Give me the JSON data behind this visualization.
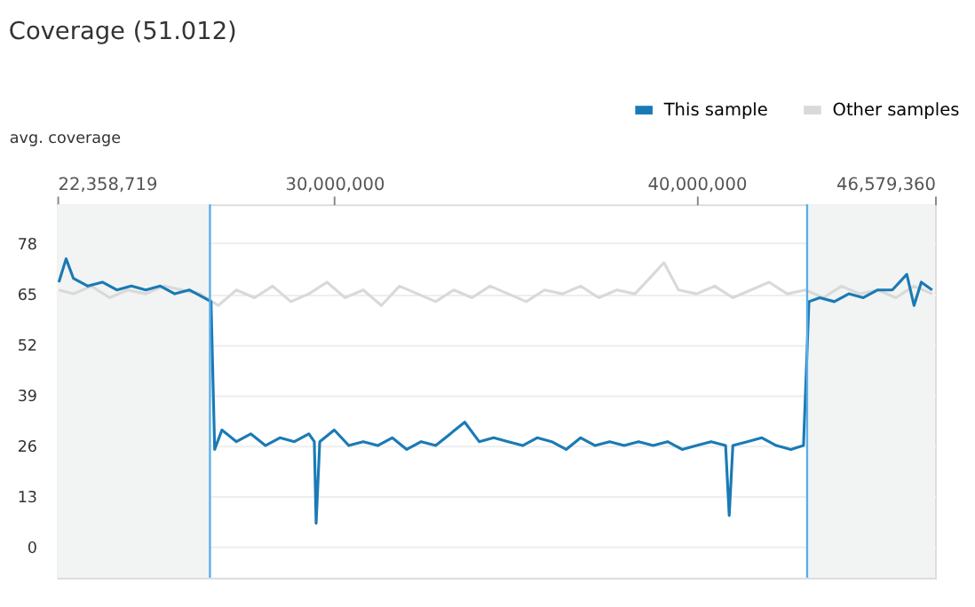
{
  "chart_data": {
    "type": "line",
    "title": "Coverage (51.012)",
    "ylabel": "avg. coverage",
    "xlim": [
      22358719,
      46579360
    ],
    "xticks": [
      {
        "value": 22358719,
        "label": "22,358,719"
      },
      {
        "value": 30000000,
        "label": "30,000,000"
      },
      {
        "value": 40000000,
        "label": "40,000,000"
      },
      {
        "value": 46579360,
        "label": "46,579,360"
      }
    ],
    "ylim": [
      -8,
      88
    ],
    "yticks": [
      0,
      13,
      26,
      39,
      52,
      65,
      78
    ],
    "grid": "y",
    "legend": "top right",
    "line_style": "solid",
    "marker": "none",
    "series": [
      {
        "name": "Other samples",
        "color": "#d9d9d9",
        "x": [
          22400000,
          22800000,
          23300000,
          23800000,
          24300000,
          24800000,
          25300000,
          25800000,
          26300000,
          26800000,
          27300000,
          27800000,
          28300000,
          28800000,
          29300000,
          29800000,
          30300000,
          30800000,
          31300000,
          31800000,
          32300000,
          32800000,
          33300000,
          33800000,
          34300000,
          34800000,
          35300000,
          35800000,
          36300000,
          36800000,
          37300000,
          37800000,
          38300000,
          38700000,
          39100000,
          39500000,
          40000000,
          40500000,
          41000000,
          41500000,
          42000000,
          42500000,
          43000000,
          43500000,
          44000000,
          44500000,
          45000000,
          45500000,
          46000000,
          46500000
        ],
        "values": [
          66,
          65,
          67,
          64,
          66,
          65,
          67,
          66,
          65,
          62,
          66,
          64,
          67,
          63,
          65,
          68,
          64,
          66,
          62,
          67,
          65,
          63,
          66,
          64,
          67,
          65,
          63,
          66,
          65,
          67,
          64,
          66,
          65,
          69,
          73,
          66,
          65,
          67,
          64,
          66,
          68,
          65,
          66,
          64,
          67,
          65,
          66,
          64,
          67,
          65
        ]
      },
      {
        "name": "This sample",
        "color": "#1a7ab5",
        "x": [
          22400000,
          22600000,
          22800000,
          23200000,
          23600000,
          24000000,
          24400000,
          24800000,
          25200000,
          25600000,
          26000000,
          26400000,
          26600000,
          26700000,
          26900000,
          27300000,
          27700000,
          28100000,
          28500000,
          28900000,
          29300000,
          29450000,
          29500000,
          29600000,
          30000000,
          30400000,
          30800000,
          31200000,
          31600000,
          32000000,
          32400000,
          32800000,
          33200000,
          33600000,
          34000000,
          34400000,
          34800000,
          35200000,
          35600000,
          36000000,
          36400000,
          36800000,
          37200000,
          37600000,
          38000000,
          38400000,
          38800000,
          39200000,
          39600000,
          40000000,
          40400000,
          40800000,
          40900000,
          41000000,
          41400000,
          41800000,
          42200000,
          42600000,
          42950000,
          43100000,
          43400000,
          43800000,
          44200000,
          44600000,
          45000000,
          45400000,
          45800000,
          46000000,
          46200000,
          46500000
        ],
        "values": [
          68,
          74,
          69,
          67,
          68,
          66,
          67,
          66,
          67,
          65,
          66,
          64,
          63,
          25,
          30,
          27,
          29,
          26,
          28,
          27,
          29,
          27,
          6,
          27,
          30,
          26,
          27,
          26,
          28,
          25,
          27,
          26,
          29,
          32,
          27,
          28,
          27,
          26,
          28,
          27,
          25,
          28,
          26,
          27,
          26,
          27,
          26,
          27,
          25,
          26,
          27,
          26,
          8,
          26,
          27,
          28,
          26,
          25,
          26,
          63,
          64,
          63,
          65,
          64,
          66,
          66,
          70,
          62,
          68,
          66
        ]
      }
    ],
    "bands": [
      {
        "axis": "x",
        "from": 22358719,
        "to": 26570000,
        "color": "#f1f4f3"
      },
      {
        "axis": "x",
        "from": 43050000,
        "to": 46579360,
        "color": "#f1f4f3"
      }
    ],
    "ref_lines": [
      {
        "axis": "x",
        "value": 26570000,
        "color": "#5aaee8",
        "line_style": "solid"
      },
      {
        "axis": "x",
        "value": 43050000,
        "color": "#5aaee8",
        "line_style": "solid"
      }
    ]
  }
}
